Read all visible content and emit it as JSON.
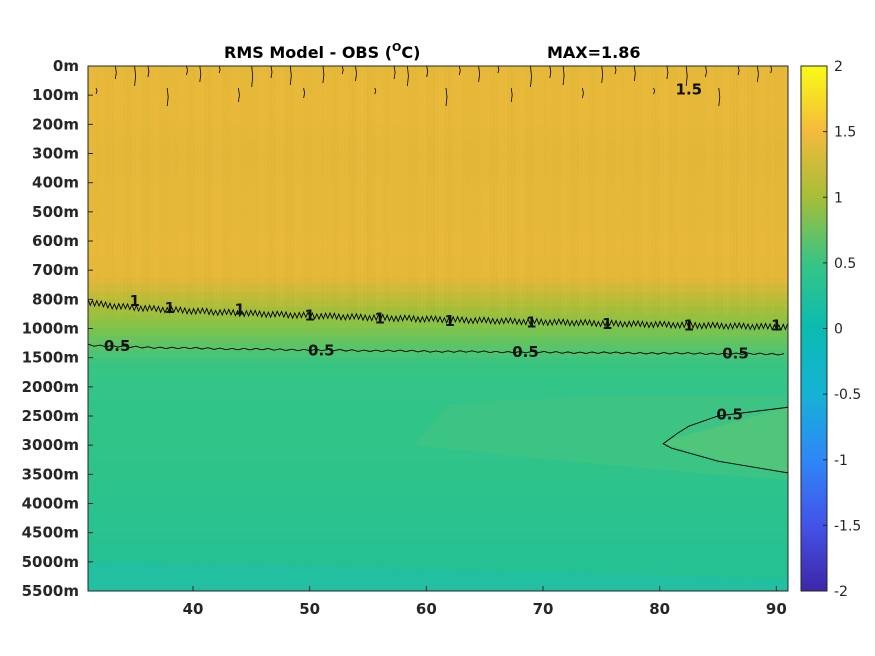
{
  "chart_data": {
    "type": "heatmap",
    "title": "RMS Model - OBS (",
    "title_super": "O",
    "title_unit": "C)",
    "max_label": "MAX=1.86",
    "y_labels": [
      "0m",
      "100m",
      "200m",
      "300m",
      "400m",
      "500m",
      "600m",
      "700m",
      "800m",
      "1000m",
      "1500m",
      "2000m",
      "2500m",
      "3000m",
      "3500m",
      "4000m",
      "4500m",
      "5000m",
      "5500m"
    ],
    "x_ticks": [
      40,
      50,
      60,
      70,
      80,
      90
    ],
    "xlim": [
      31,
      91
    ],
    "colorbar": {
      "ticks": [
        2,
        1.5,
        1,
        0.5,
        0,
        -0.5,
        -1,
        -1.5,
        -2
      ],
      "tick_labels": [
        "2",
        "1.5",
        "1",
        "0.5",
        "0",
        "-0.5",
        "-1",
        "-1.5",
        "-2"
      ],
      "range": [
        -2,
        2
      ],
      "colormap": "parula"
    },
    "field_profile": [
      {
        "level": 0,
        "value": 1.3
      },
      {
        "level": 1,
        "value": 1.35
      },
      {
        "level": 2,
        "value": 1.3
      },
      {
        "level": 3,
        "value": 1.28
      },
      {
        "level": 4,
        "value": 1.3
      },
      {
        "level": 5,
        "value": 1.3
      },
      {
        "level": 6,
        "value": 1.32
      },
      {
        "level": 7,
        "value": 1.3
      },
      {
        "level": 8,
        "value": 1.05
      },
      {
        "level": 9,
        "value": 0.72
      },
      {
        "level": 10,
        "value": 0.52
      },
      {
        "level": 11,
        "value": 0.44
      },
      {
        "level": 12,
        "value": 0.43
      },
      {
        "level": 13,
        "value": 0.42
      },
      {
        "level": 14,
        "value": 0.4
      },
      {
        "level": 15,
        "value": 0.36
      },
      {
        "level": 16,
        "value": 0.33
      },
      {
        "level": 17,
        "value": 0.3
      },
      {
        "level": 18,
        "value": 0.27
      }
    ],
    "contour_labels": [
      {
        "text": "1.5",
        "x": 82.5,
        "level": 0.8
      },
      {
        "text": "1",
        "x": 35,
        "level": 8.05
      },
      {
        "text": "1",
        "x": 38,
        "level": 8.3
      },
      {
        "text": "1",
        "x": 44,
        "level": 8.35
      },
      {
        "text": "1",
        "x": 50,
        "level": 8.55
      },
      {
        "text": "1",
        "x": 56,
        "level": 8.65
      },
      {
        "text": "1",
        "x": 62,
        "level": 8.75
      },
      {
        "text": "1",
        "x": 69,
        "level": 8.8
      },
      {
        "text": "1",
        "x": 75.5,
        "level": 8.85
      },
      {
        "text": "1",
        "x": 82.5,
        "level": 8.9
      },
      {
        "text": "1",
        "x": 90,
        "level": 8.9
      },
      {
        "text": "0.5",
        "x": 33.5,
        "level": 9.6
      },
      {
        "text": "0.5",
        "x": 51,
        "level": 9.75
      },
      {
        "text": "0.5",
        "x": 68.5,
        "level": 9.8
      },
      {
        "text": "0.5",
        "x": 86.5,
        "level": 9.85
      },
      {
        "text": "0.5",
        "x": 86,
        "level": 11.95
      }
    ]
  }
}
